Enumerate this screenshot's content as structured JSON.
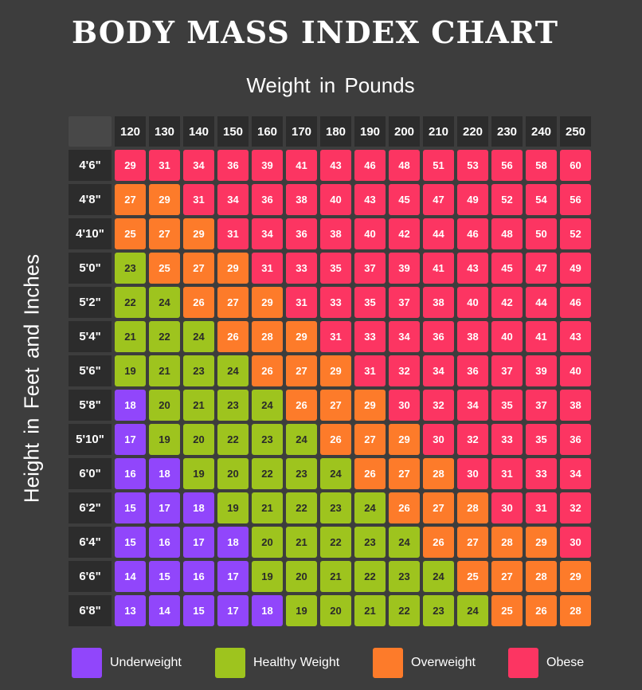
{
  "title": "BODY MASS INDEX CHART",
  "colors": {
    "background": "#3d3d3d",
    "Underweight": "#9146fb",
    "Healthy Weight": "#9ec41e",
    "Overweight": "#fd7b2a",
    "Obese": "#fc3562"
  },
  "chart_data": {
    "type": "table",
    "xlabel": "Weight in Pounds",
    "ylabel": "Height in Feet and Inches",
    "x": [
      120,
      130,
      140,
      150,
      160,
      170,
      180,
      190,
      200,
      210,
      220,
      230,
      240,
      250
    ],
    "y": [
      "4'6\"",
      "4'8\"",
      "4'10\"",
      "5'0\"",
      "5'2\"",
      "5'4\"",
      "5'6\"",
      "5'8\"",
      "5'10\"",
      "6'0\"",
      "6'2\"",
      "6'4\"",
      "6'6\"",
      "6'8\""
    ],
    "values": [
      [
        29,
        31,
        34,
        36,
        39,
        41,
        43,
        46,
        48,
        51,
        53,
        56,
        58,
        60
      ],
      [
        27,
        29,
        31,
        34,
        36,
        38,
        40,
        43,
        45,
        47,
        49,
        52,
        54,
        56
      ],
      [
        25,
        27,
        29,
        31,
        34,
        36,
        38,
        40,
        42,
        44,
        46,
        48,
        50,
        52
      ],
      [
        23,
        25,
        27,
        29,
        31,
        33,
        35,
        37,
        39,
        41,
        43,
        45,
        47,
        49
      ],
      [
        22,
        24,
        26,
        27,
        29,
        31,
        33,
        35,
        37,
        38,
        40,
        42,
        44,
        46
      ],
      [
        21,
        22,
        24,
        26,
        28,
        29,
        31,
        33,
        34,
        36,
        38,
        40,
        41,
        43
      ],
      [
        19,
        21,
        23,
        24,
        26,
        27,
        29,
        31,
        32,
        34,
        36,
        37,
        39,
        40
      ],
      [
        18,
        20,
        21,
        23,
        24,
        26,
        27,
        29,
        30,
        32,
        34,
        35,
        37,
        38
      ],
      [
        17,
        19,
        20,
        22,
        23,
        24,
        26,
        27,
        29,
        30,
        32,
        33,
        35,
        36
      ],
      [
        16,
        18,
        19,
        20,
        22,
        23,
        24,
        26,
        27,
        28,
        30,
        31,
        33,
        34
      ],
      [
        15,
        17,
        18,
        19,
        21,
        22,
        23,
        24,
        26,
        27,
        28,
        30,
        31,
        32
      ],
      [
        15,
        16,
        17,
        18,
        20,
        21,
        22,
        23,
        24,
        26,
        27,
        28,
        29,
        30
      ],
      [
        14,
        15,
        16,
        17,
        19,
        20,
        21,
        22,
        23,
        24,
        25,
        27,
        28,
        29
      ],
      [
        13,
        14,
        15,
        17,
        18,
        19,
        20,
        21,
        22,
        23,
        24,
        25,
        26,
        28
      ]
    ],
    "categories": [
      [
        3,
        3,
        3,
        3,
        3,
        3,
        3,
        3,
        3,
        3,
        3,
        3,
        3,
        3
      ],
      [
        2,
        2,
        3,
        3,
        3,
        3,
        3,
        3,
        3,
        3,
        3,
        3,
        3,
        3
      ],
      [
        2,
        2,
        2,
        3,
        3,
        3,
        3,
        3,
        3,
        3,
        3,
        3,
        3,
        3
      ],
      [
        1,
        2,
        2,
        2,
        3,
        3,
        3,
        3,
        3,
        3,
        3,
        3,
        3,
        3
      ],
      [
        1,
        1,
        2,
        2,
        2,
        3,
        3,
        3,
        3,
        3,
        3,
        3,
        3,
        3
      ],
      [
        1,
        1,
        1,
        2,
        2,
        2,
        3,
        3,
        3,
        3,
        3,
        3,
        3,
        3
      ],
      [
        1,
        1,
        1,
        1,
        2,
        2,
        2,
        3,
        3,
        3,
        3,
        3,
        3,
        3
      ],
      [
        0,
        1,
        1,
        1,
        1,
        2,
        2,
        2,
        3,
        3,
        3,
        3,
        3,
        3
      ],
      [
        0,
        1,
        1,
        1,
        1,
        1,
        2,
        2,
        2,
        3,
        3,
        3,
        3,
        3
      ],
      [
        0,
        0,
        1,
        1,
        1,
        1,
        1,
        2,
        2,
        2,
        3,
        3,
        3,
        3
      ],
      [
        0,
        0,
        0,
        1,
        1,
        1,
        1,
        1,
        2,
        2,
        2,
        3,
        3,
        3
      ],
      [
        0,
        0,
        0,
        0,
        1,
        1,
        1,
        1,
        1,
        2,
        2,
        2,
        2,
        3
      ],
      [
        0,
        0,
        0,
        0,
        1,
        1,
        1,
        1,
        1,
        1,
        2,
        2,
        2,
        2
      ],
      [
        0,
        0,
        0,
        0,
        0,
        1,
        1,
        1,
        1,
        1,
        1,
        2,
        2,
        2
      ]
    ],
    "legend": [
      "Underweight",
      "Healthy Weight",
      "Overweight",
      "Obese"
    ]
  }
}
